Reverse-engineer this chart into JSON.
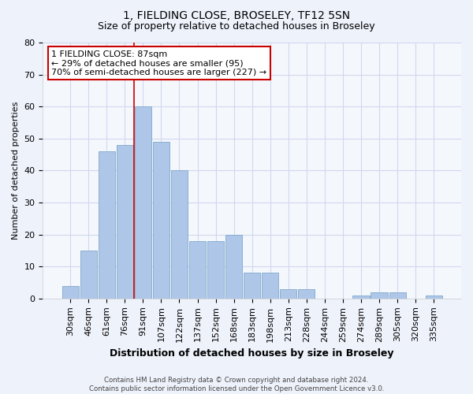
{
  "title": "1, FIELDING CLOSE, BROSELEY, TF12 5SN",
  "subtitle": "Size of property relative to detached houses in Broseley",
  "xlabel": "Distribution of detached houses by size in Broseley",
  "ylabel": "Number of detached properties",
  "categories": [
    "30sqm",
    "46sqm",
    "61sqm",
    "76sqm",
    "91sqm",
    "107sqm",
    "122sqm",
    "137sqm",
    "152sqm",
    "168sqm",
    "183sqm",
    "198sqm",
    "213sqm",
    "228sqm",
    "244sqm",
    "259sqm",
    "274sqm",
    "289sqm",
    "305sqm",
    "320sqm",
    "335sqm"
  ],
  "values": [
    4,
    15,
    46,
    48,
    60,
    49,
    40,
    18,
    18,
    20,
    8,
    8,
    3,
    3,
    0,
    0,
    1,
    2,
    2,
    0,
    1
  ],
  "bar_color": "#aec6e8",
  "bar_edge_color": "#8ab0d0",
  "ylim": [
    0,
    80
  ],
  "yticks": [
    0,
    10,
    20,
    30,
    40,
    50,
    60,
    70,
    80
  ],
  "vline_index": 4,
  "vline_color": "#cc0000",
  "annotation_line1": "1 FIELDING CLOSE: 87sqm",
  "annotation_line2": "← 29% of detached houses are smaller (95)",
  "annotation_line3": "70% of semi-detached houses are larger (227) →",
  "annotation_box_color": "#cc0000",
  "footer_text": "Contains HM Land Registry data © Crown copyright and database right 2024.\nContains public sector information licensed under the Open Government Licence v3.0.",
  "background_color": "#eef2fb",
  "plot_background_color": "#f4f7fc",
  "grid_color": "#d0d8ee",
  "title_fontsize": 10,
  "subtitle_fontsize": 9,
  "ylabel_fontsize": 8,
  "xlabel_fontsize": 9,
  "tick_fontsize": 8,
  "annot_fontsize": 8
}
